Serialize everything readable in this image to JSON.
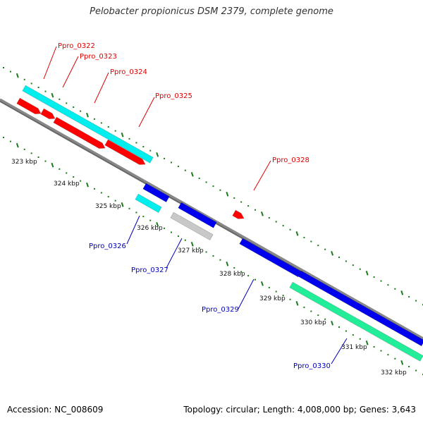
{
  "title": "Pelobacter propionicus DSM 2379, complete genome",
  "footer": {
    "accession": "Accession: NC_008609",
    "summary": "Topology: circular; Length: 4,008,000 bp; Genes: 3,643"
  },
  "colors": {
    "forward_label": "#dd0000",
    "reverse_label": "#0000bb",
    "backbone": "#888888",
    "tick": "#1a7a1a",
    "red": "#ff0000",
    "cyan": "#00eeee",
    "blue": "#0000ee",
    "gray": "#c8c8c8",
    "green": "#22ee99"
  },
  "scale_labels": [
    "323 kbp",
    "324 kbp",
    "325 kbp",
    "326 kbp",
    "327 kbp",
    "328 kbp",
    "329 kbp",
    "330 kbp",
    "331 kbp",
    "332 kbp"
  ],
  "gene_labels": {
    "forward": [
      "Ppro_0322",
      "Ppro_0323",
      "Ppro_0324",
      "Ppro_0325",
      "Ppro_0328"
    ],
    "reverse": [
      "Ppro_0326",
      "Ppro_0327",
      "Ppro_0329",
      "Ppro_0330"
    ]
  }
}
